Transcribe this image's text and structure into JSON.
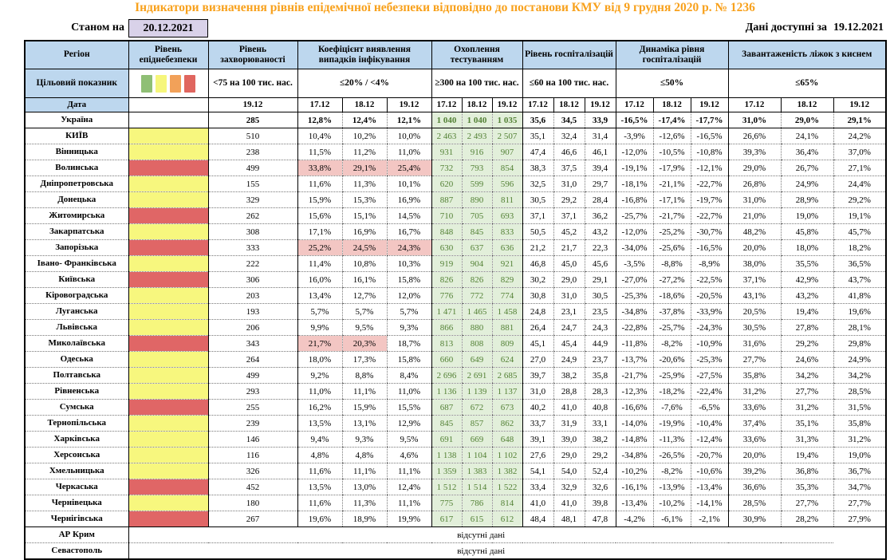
{
  "page": {
    "title": "Індикатори визначення рівнів епідемічної небезпеки відповідно до постанови КМУ від 9 грудня 2020 р. № 1236",
    "as_of_label": "Станом на",
    "as_of_date": "20.12.2021",
    "available_label": "Дані доступні за",
    "available_date": "19.12.2021"
  },
  "colors": {
    "title_orange": "#F8A11C",
    "header_blue": "#BDD7EE",
    "asof_lavender": "#D9D2E9",
    "level_yellow": "#F7F77E",
    "level_red": "#E06666",
    "coef_highlight": "#F3C6C3",
    "test_bg": "#E2EFDA",
    "test_text": "#538135"
  },
  "table": {
    "legend_colors": [
      "#8FBF75",
      "#F6F67B",
      "#F2A159",
      "#E0665F"
    ],
    "no_data_text": "відсутні дані",
    "col_groups": [
      {
        "key": "region",
        "label": "Регіон",
        "target": "Цільовий показник",
        "date_label": "Дата"
      },
      {
        "key": "level",
        "label": "Рівень епіднебезпеки",
        "target": "legend",
        "dates": [
          ""
        ]
      },
      {
        "key": "rate",
        "label": "Рівень захворюваності",
        "target": "<75 на 100 тис. нас.",
        "dates": [
          "19.12"
        ]
      },
      {
        "key": "coef",
        "label": "Коефіцієнт виявлення випадків інфікування",
        "target": "≤20% / <4%",
        "dates": [
          "17.12",
          "18.12",
          "19.12"
        ]
      },
      {
        "key": "test",
        "label": "Охоплення тестуванням",
        "target": "≥300 на 100 тис. нас.",
        "dates": [
          "17.12",
          "18.12",
          "19.12"
        ]
      },
      {
        "key": "hosp",
        "label": "Рівень госпіталізацій",
        "target": "≤60 на 100 тис. нас.",
        "dates": [
          "17.12",
          "18.12",
          "19.12"
        ]
      },
      {
        "key": "dyn",
        "label": "Динаміка рівня госпіталізацій",
        "target": "≤50%",
        "dates": [
          "17.12",
          "18.12",
          "19.12"
        ]
      },
      {
        "key": "beds",
        "label": "Завантаженість ліжок з киснем",
        "target": "≤65%",
        "dates": [
          "17.12",
          "18.12",
          "19.12"
        ]
      }
    ],
    "rows": [
      {
        "region": "Україна",
        "level": null,
        "bold": true,
        "rate": "285",
        "coef": [
          "12,8%",
          "12,4%",
          "12,1%"
        ],
        "test": [
          "1 040",
          "1 040",
          "1 035"
        ],
        "hosp": [
          "35,6",
          "34,5",
          "33,9"
        ],
        "dyn": [
          "-16,5%",
          "-17,4%",
          "-17,7%"
        ],
        "beds": [
          "31,0%",
          "29,0%",
          "29,1%"
        ]
      },
      {
        "region": "КИЇВ",
        "level": "yellow",
        "rate": "510",
        "coef": [
          "10,4%",
          "10,2%",
          "10,0%"
        ],
        "test": [
          "2 463",
          "2 493",
          "2 507"
        ],
        "hosp": [
          "35,1",
          "32,4",
          "31,4"
        ],
        "dyn": [
          "-3,9%",
          "-12,6%",
          "-16,5%"
        ],
        "beds": [
          "26,6%",
          "24,1%",
          "24,2%"
        ]
      },
      {
        "region": "Вінницька",
        "level": "yellow",
        "rate": "238",
        "coef": [
          "11,5%",
          "11,2%",
          "11,0%"
        ],
        "test": [
          "931",
          "916",
          "907"
        ],
        "hosp": [
          "47,4",
          "46,6",
          "46,1"
        ],
        "dyn": [
          "-12,0%",
          "-10,5%",
          "-10,8%"
        ],
        "beds": [
          "39,3%",
          "36,4%",
          "37,0%"
        ]
      },
      {
        "region": "Волинська",
        "level": "red",
        "rate": "499",
        "coef": [
          "33,8%",
          "29,1%",
          "25,4%"
        ],
        "hl": [
          1,
          1,
          1
        ],
        "test": [
          "732",
          "793",
          "854"
        ],
        "hosp": [
          "38,3",
          "37,5",
          "39,4"
        ],
        "dyn": [
          "-19,1%",
          "-17,9%",
          "-12,1%"
        ],
        "beds": [
          "29,0%",
          "26,7%",
          "27,1%"
        ]
      },
      {
        "region": "Дніпропетровська",
        "level": "yellow",
        "rate": "155",
        "coef": [
          "11,6%",
          "11,3%",
          "10,1%"
        ],
        "test": [
          "620",
          "599",
          "596"
        ],
        "hosp": [
          "32,5",
          "31,0",
          "29,7"
        ],
        "dyn": [
          "-18,1%",
          "-21,1%",
          "-22,7%"
        ],
        "beds": [
          "26,8%",
          "24,9%",
          "24,4%"
        ]
      },
      {
        "region": "Донецька",
        "level": "yellow",
        "rate": "329",
        "coef": [
          "15,9%",
          "15,3%",
          "16,9%"
        ],
        "test": [
          "887",
          "890",
          "811"
        ],
        "hosp": [
          "30,5",
          "29,2",
          "28,4"
        ],
        "dyn": [
          "-16,8%",
          "-17,1%",
          "-19,7%"
        ],
        "beds": [
          "31,0%",
          "28,9%",
          "29,2%"
        ]
      },
      {
        "region": "Житомирська",
        "level": "red",
        "rate": "262",
        "coef": [
          "15,6%",
          "15,1%",
          "14,5%"
        ],
        "test": [
          "710",
          "705",
          "693"
        ],
        "hosp": [
          "37,1",
          "37,1",
          "36,2"
        ],
        "dyn": [
          "-25,7%",
          "-21,7%",
          "-22,7%"
        ],
        "beds": [
          "21,0%",
          "19,0%",
          "19,1%"
        ]
      },
      {
        "region": "Закарпатська",
        "level": "yellow",
        "rate": "308",
        "coef": [
          "17,1%",
          "16,9%",
          "16,7%"
        ],
        "test": [
          "848",
          "845",
          "833"
        ],
        "hosp": [
          "50,5",
          "45,2",
          "43,2"
        ],
        "dyn": [
          "-12,0%",
          "-25,2%",
          "-30,7%"
        ],
        "beds": [
          "48,2%",
          "45,8%",
          "45,7%"
        ]
      },
      {
        "region": "Запорізька",
        "level": "red",
        "rate": "333",
        "coef": [
          "25,2%",
          "24,5%",
          "24,3%"
        ],
        "hl": [
          1,
          1,
          1
        ],
        "test": [
          "630",
          "637",
          "636"
        ],
        "hosp": [
          "21,2",
          "21,7",
          "22,3"
        ],
        "dyn": [
          "-34,0%",
          "-25,6%",
          "-16,5%"
        ],
        "beds": [
          "20,0%",
          "18,0%",
          "18,2%"
        ]
      },
      {
        "region": "Івано-\nФранківська",
        "level": "yellow",
        "rate": "222",
        "coef": [
          "11,4%",
          "10,8%",
          "10,3%"
        ],
        "test": [
          "919",
          "904",
          "921"
        ],
        "hosp": [
          "46,8",
          "45,0",
          "45,6"
        ],
        "dyn": [
          "-3,5%",
          "-8,8%",
          "-8,9%"
        ],
        "beds": [
          "38,0%",
          "35,5%",
          "36,5%"
        ]
      },
      {
        "region": "Київська",
        "level": "red",
        "rate": "306",
        "coef": [
          "16,0%",
          "16,1%",
          "15,8%"
        ],
        "test": [
          "826",
          "826",
          "829"
        ],
        "hosp": [
          "30,2",
          "29,0",
          "29,1"
        ],
        "dyn": [
          "-27,0%",
          "-27,2%",
          "-22,5%"
        ],
        "beds": [
          "37,1%",
          "42,9%",
          "43,7%"
        ]
      },
      {
        "region": "Кіровоградська",
        "level": "yellow",
        "rate": "203",
        "coef": [
          "13,4%",
          "12,7%",
          "12,0%"
        ],
        "test": [
          "776",
          "772",
          "774"
        ],
        "hosp": [
          "30,8",
          "31,0",
          "30,5"
        ],
        "dyn": [
          "-25,3%",
          "-18,6%",
          "-20,5%"
        ],
        "beds": [
          "43,1%",
          "43,2%",
          "41,8%"
        ]
      },
      {
        "region": "Луганська",
        "level": "yellow",
        "rate": "193",
        "coef": [
          "5,7%",
          "5,7%",
          "5,7%"
        ],
        "test": [
          "1 471",
          "1 465",
          "1 458"
        ],
        "hosp": [
          "24,8",
          "23,1",
          "23,5"
        ],
        "dyn": [
          "-34,8%",
          "-37,8%",
          "-33,9%"
        ],
        "beds": [
          "20,5%",
          "19,4%",
          "19,6%"
        ]
      },
      {
        "region": "Львівська",
        "level": "yellow",
        "rate": "206",
        "coef": [
          "9,9%",
          "9,5%",
          "9,3%"
        ],
        "test": [
          "866",
          "880",
          "881"
        ],
        "hosp": [
          "26,4",
          "24,7",
          "24,3"
        ],
        "dyn": [
          "-22,8%",
          "-25,7%",
          "-24,3%"
        ],
        "beds": [
          "30,5%",
          "27,8%",
          "28,1%"
        ]
      },
      {
        "region": "Миколаївська",
        "level": "red",
        "rate": "343",
        "coef": [
          "21,7%",
          "20,3%",
          "18,7%"
        ],
        "hl": [
          1,
          1,
          0
        ],
        "test": [
          "813",
          "808",
          "809"
        ],
        "hosp": [
          "45,1",
          "45,4",
          "44,9"
        ],
        "dyn": [
          "-11,8%",
          "-8,2%",
          "-10,9%"
        ],
        "beds": [
          "31,6%",
          "29,2%",
          "29,8%"
        ]
      },
      {
        "region": "Одеська",
        "level": "yellow",
        "rate": "264",
        "coef": [
          "18,0%",
          "17,3%",
          "15,8%"
        ],
        "test": [
          "660",
          "649",
          "624"
        ],
        "hosp": [
          "27,0",
          "24,9",
          "23,7"
        ],
        "dyn": [
          "-13,7%",
          "-20,6%",
          "-25,3%"
        ],
        "beds": [
          "27,7%",
          "24,6%",
          "24,9%"
        ]
      },
      {
        "region": "Полтавська",
        "level": "yellow",
        "rate": "499",
        "coef": [
          "9,2%",
          "8,8%",
          "8,4%"
        ],
        "test": [
          "2 696",
          "2 691",
          "2 685"
        ],
        "hosp": [
          "39,7",
          "38,2",
          "35,8"
        ],
        "dyn": [
          "-21,7%",
          "-25,9%",
          "-27,5%"
        ],
        "beds": [
          "35,8%",
          "34,2%",
          "34,2%"
        ]
      },
      {
        "region": "Рівненська",
        "level": "yellow",
        "rate": "293",
        "coef": [
          "11,0%",
          "11,1%",
          "11,0%"
        ],
        "test": [
          "1 136",
          "1 139",
          "1 137"
        ],
        "hosp": [
          "31,0",
          "28,8",
          "28,3"
        ],
        "dyn": [
          "-12,3%",
          "-18,2%",
          "-22,4%"
        ],
        "beds": [
          "31,2%",
          "27,7%",
          "28,5%"
        ]
      },
      {
        "region": "Сумська",
        "level": "red",
        "rate": "255",
        "coef": [
          "16,2%",
          "15,9%",
          "15,5%"
        ],
        "test": [
          "687",
          "672",
          "673"
        ],
        "hosp": [
          "40,2",
          "41,0",
          "40,8"
        ],
        "dyn": [
          "-16,6%",
          "-7,6%",
          "-6,5%"
        ],
        "beds": [
          "33,6%",
          "31,2%",
          "31,5%"
        ]
      },
      {
        "region": "Тернопільська",
        "level": "yellow",
        "rate": "239",
        "coef": [
          "13,5%",
          "13,1%",
          "12,9%"
        ],
        "test": [
          "845",
          "857",
          "862"
        ],
        "hosp": [
          "33,7",
          "31,9",
          "33,1"
        ],
        "dyn": [
          "-14,0%",
          "-19,9%",
          "-10,4%"
        ],
        "beds": [
          "37,4%",
          "35,1%",
          "35,8%"
        ]
      },
      {
        "region": "Харківська",
        "level": "yellow",
        "rate": "146",
        "coef": [
          "9,4%",
          "9,3%",
          "9,5%"
        ],
        "test": [
          "691",
          "669",
          "648"
        ],
        "hosp": [
          "39,1",
          "39,0",
          "38,2"
        ],
        "dyn": [
          "-14,8%",
          "-11,3%",
          "-12,4%"
        ],
        "beds": [
          "33,6%",
          "31,3%",
          "31,2%"
        ]
      },
      {
        "region": "Херсонська",
        "level": "yellow",
        "rate": "116",
        "coef": [
          "4,8%",
          "4,8%",
          "4,6%"
        ],
        "test": [
          "1 138",
          "1 104",
          "1 102"
        ],
        "hosp": [
          "27,6",
          "29,0",
          "29,2"
        ],
        "dyn": [
          "-34,8%",
          "-26,5%",
          "-20,7%"
        ],
        "beds": [
          "20,0%",
          "19,4%",
          "19,0%"
        ]
      },
      {
        "region": "Хмельницька",
        "level": "yellow",
        "rate": "326",
        "coef": [
          "11,6%",
          "11,1%",
          "11,1%"
        ],
        "test": [
          "1 359",
          "1 383",
          "1 382"
        ],
        "hosp": [
          "54,1",
          "54,0",
          "52,4"
        ],
        "dyn": [
          "-10,2%",
          "-8,2%",
          "-10,6%"
        ],
        "beds": [
          "39,2%",
          "36,8%",
          "36,7%"
        ]
      },
      {
        "region": "Черкаська",
        "level": "red",
        "rate": "452",
        "coef": [
          "13,5%",
          "13,0%",
          "12,4%"
        ],
        "test": [
          "1 512",
          "1 514",
          "1 522"
        ],
        "hosp": [
          "33,4",
          "32,9",
          "32,6"
        ],
        "dyn": [
          "-16,1%",
          "-13,9%",
          "-13,4%"
        ],
        "beds": [
          "36,6%",
          "35,3%",
          "34,7%"
        ]
      },
      {
        "region": "Чернівецька",
        "level": "yellow",
        "rate": "180",
        "coef": [
          "11,6%",
          "11,3%",
          "11,1%"
        ],
        "test": [
          "775",
          "786",
          "814"
        ],
        "hosp": [
          "41,0",
          "41,0",
          "39,8"
        ],
        "dyn": [
          "-13,4%",
          "-10,2%",
          "-14,1%"
        ],
        "beds": [
          "28,5%",
          "27,7%",
          "27,7%"
        ]
      },
      {
        "region": "Чернігівська",
        "level": "red",
        "rate": "267",
        "coef": [
          "19,6%",
          "18,9%",
          "19,9%"
        ],
        "test": [
          "617",
          "615",
          "612"
        ],
        "hosp": [
          "48,4",
          "48,1",
          "47,8"
        ],
        "dyn": [
          "-4,2%",
          "-6,1%",
          "-2,1%"
        ],
        "beds": [
          "30,9%",
          "28,2%",
          "27,9%"
        ]
      },
      {
        "region": "АР Крим",
        "no_data": true
      },
      {
        "region": "Севастополь",
        "no_data": true
      }
    ]
  }
}
